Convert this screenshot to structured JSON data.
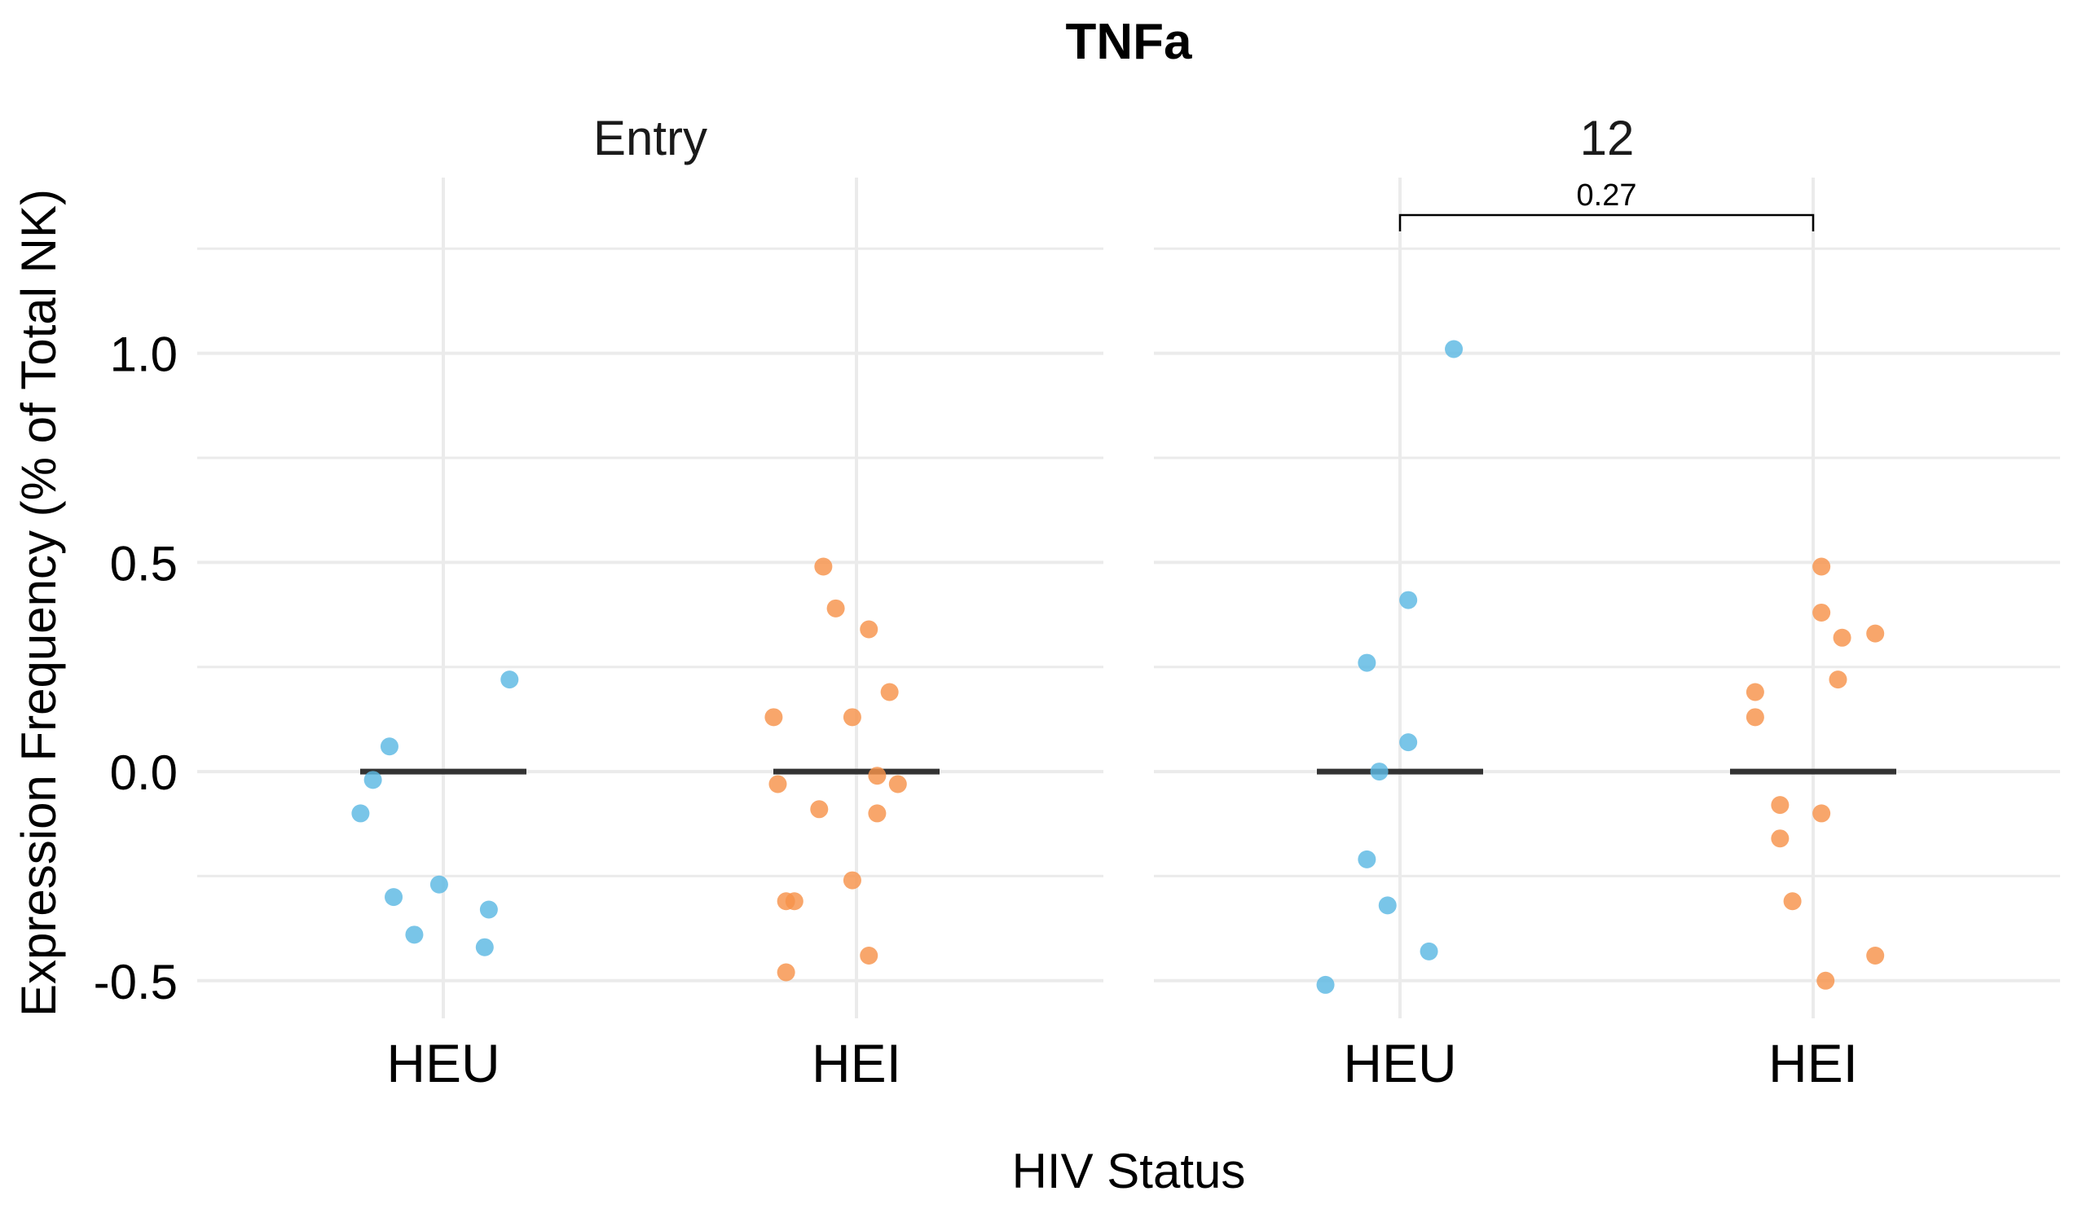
{
  "chart_data": {
    "type": "scatter",
    "title": "TNFa",
    "xlabel": "HIV Status",
    "ylabel": "Expression Frequency (% of Total NK)",
    "ylim": [
      -0.59,
      1.42
    ],
    "yticks": [
      -0.5,
      0.0,
      0.5,
      1.0
    ],
    "ytick_labels": [
      "-0.5",
      "0.0",
      "0.5",
      "1.0"
    ],
    "categories": [
      "HEU",
      "HEI"
    ],
    "colors": {
      "HEU": "#5BB8E3",
      "HEI": "#F7924B",
      "median": "#333333",
      "grid": "#EBEBEB"
    },
    "grid": true,
    "legend": "none",
    "panels": [
      {
        "facet": "Entry",
        "groups": [
          {
            "category": "HEU",
            "median": 0.0,
            "points": [
              {
                "x": -0.2,
                "y": -0.1
              },
              {
                "x": -0.17,
                "y": -0.02
              },
              {
                "x": -0.13,
                "y": 0.06
              },
              {
                "x": -0.12,
                "y": -0.3
              },
              {
                "x": -0.07,
                "y": -0.39
              },
              {
                "x": -0.01,
                "y": -0.27
              },
              {
                "x": 0.1,
                "y": -0.42
              },
              {
                "x": 0.11,
                "y": -0.33
              },
              {
                "x": 0.16,
                "y": 0.22
              }
            ]
          },
          {
            "category": "HEI",
            "median": 0.0,
            "points": [
              {
                "x": -0.2,
                "y": 0.13
              },
              {
                "x": -0.19,
                "y": -0.03
              },
              {
                "x": -0.17,
                "y": -0.31
              },
              {
                "x": -0.17,
                "y": -0.48
              },
              {
                "x": -0.15,
                "y": -0.31
              },
              {
                "x": -0.09,
                "y": -0.09
              },
              {
                "x": -0.08,
                "y": 0.49
              },
              {
                "x": -0.05,
                "y": 0.39
              },
              {
                "x": -0.01,
                "y": 0.13
              },
              {
                "x": -0.01,
                "y": -0.26
              },
              {
                "x": 0.03,
                "y": 0.34
              },
              {
                "x": 0.03,
                "y": -0.44
              },
              {
                "x": 0.05,
                "y": -0.01
              },
              {
                "x": 0.05,
                "y": -0.1
              },
              {
                "x": 0.08,
                "y": 0.19
              },
              {
                "x": 0.1,
                "y": -0.03
              }
            ]
          }
        ]
      },
      {
        "facet": "12",
        "comparison": {
          "label": "0.27",
          "from": "HEU",
          "to": "HEI"
        },
        "groups": [
          {
            "category": "HEU",
            "median": 0.0,
            "points": [
              {
                "x": -0.18,
                "y": -0.51
              },
              {
                "x": -0.08,
                "y": 0.26
              },
              {
                "x": -0.08,
                "y": -0.21
              },
              {
                "x": -0.05,
                "y": 0.0
              },
              {
                "x": -0.03,
                "y": -0.32
              },
              {
                "x": 0.02,
                "y": 0.41
              },
              {
                "x": 0.02,
                "y": 0.07
              },
              {
                "x": 0.07,
                "y": -0.43
              },
              {
                "x": 0.13,
                "y": 1.01
              }
            ]
          },
          {
            "category": "HEI",
            "median": 0.0,
            "points": [
              {
                "x": -0.14,
                "y": 0.19
              },
              {
                "x": -0.14,
                "y": 0.13
              },
              {
                "x": -0.08,
                "y": -0.08
              },
              {
                "x": -0.08,
                "y": -0.16
              },
              {
                "x": -0.05,
                "y": -0.31
              },
              {
                "x": 0.02,
                "y": 0.49
              },
              {
                "x": 0.02,
                "y": 0.38
              },
              {
                "x": 0.02,
                "y": -0.1
              },
              {
                "x": 0.03,
                "y": -0.5
              },
              {
                "x": 0.06,
                "y": 0.22
              },
              {
                "x": 0.07,
                "y": 0.32
              },
              {
                "x": 0.15,
                "y": 0.33
              },
              {
                "x": 0.15,
                "y": -0.44
              }
            ]
          }
        ]
      }
    ]
  }
}
